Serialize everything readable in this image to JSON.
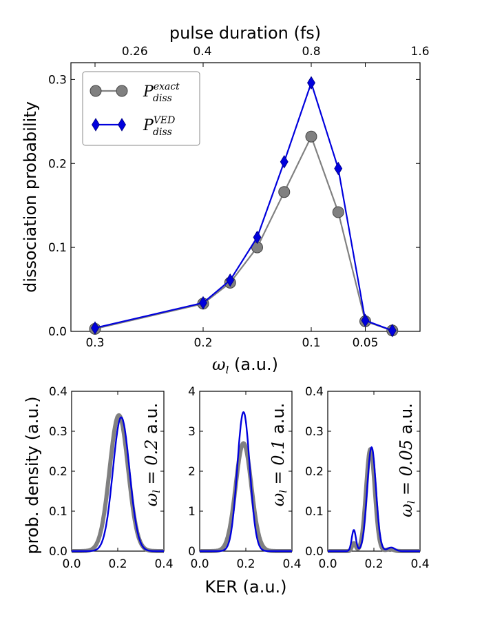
{
  "chart_data": [
    {
      "id": "main",
      "type": "line",
      "ylabel": "dissociation probability",
      "xlabel_symbol": "ω",
      "xlabel_sub": "l",
      "xlabel_unit": " (a.u.)",
      "top_xlabel": "pulse duration (fs)",
      "x_ticks": [
        {
          "value": 0.3,
          "label": "0.3"
        },
        {
          "value": 0.2,
          "label": "0.2"
        },
        {
          "value": 0.1,
          "label": "0.1"
        },
        {
          "value": 0.05,
          "label": "0.05"
        }
      ],
      "top_ticks": [
        {
          "value": 0.26,
          "label": "0.26"
        },
        {
          "value": 0.4,
          "label": "0.4"
        },
        {
          "value": 0.8,
          "label": "0.8"
        },
        {
          "value": 1.6,
          "label": "1.6"
        }
      ],
      "y_ticks": [
        {
          "value": 0,
          "label": "0.0"
        },
        {
          "value": 0.1,
          "label": "0.1"
        },
        {
          "value": 0.2,
          "label": "0.2"
        },
        {
          "value": 0.3,
          "label": "0.3"
        }
      ],
      "ylim": [
        0,
        0.32
      ],
      "series": [
        {
          "name": "exact",
          "legend_main": "P",
          "legend_sup": "exact",
          "legend_sub": "diss",
          "color": "#808080",
          "marker": "circle",
          "x": [
            0.3,
            0.2,
            0.175,
            0.15,
            0.125,
            0.1,
            0.075,
            0.05,
            0.025
          ],
          "y": [
            0.003,
            0.033,
            0.058,
            0.1,
            0.166,
            0.232,
            0.142,
            0.012,
            0.001
          ]
        },
        {
          "name": "VED",
          "legend_main": "P",
          "legend_sup": "VED",
          "legend_sub": "diss",
          "color": "#0000dd",
          "marker": "thin_diamond",
          "x": [
            0.3,
            0.2,
            0.175,
            0.15,
            0.125,
            0.1,
            0.075,
            0.05,
            0.025
          ],
          "y": [
            0.004,
            0.034,
            0.061,
            0.112,
            0.202,
            0.296,
            0.194,
            0.013,
            0.001
          ]
        }
      ]
    },
    {
      "id": "kerA",
      "type": "line",
      "ylabel": "prob. density (a.u.)",
      "annotation_sym": "ω",
      "annotation_sub": "l",
      "annotation_rest": " = 0.2",
      "annotation_unit": " a.u.",
      "xlim": [
        0,
        0.4
      ],
      "ylim": [
        0,
        0.4
      ],
      "x_ticks": [
        "0.0",
        "0.2",
        "0.4"
      ],
      "y_ticks": [
        "0.0",
        "0.1",
        "0.2",
        "0.3",
        "0.4"
      ],
      "series": [
        {
          "name": "exact",
          "color": "#808080",
          "peaks": [
            {
              "center": 0.205,
              "height": 0.34,
              "width": 0.04
            }
          ]
        },
        {
          "name": "VED",
          "color": "#0000dd",
          "peaks": [
            {
              "center": 0.215,
              "height": 0.335,
              "width": 0.036
            }
          ]
        }
      ]
    },
    {
      "id": "kerB",
      "type": "line",
      "xlabel": "KER (a.u.)",
      "annotation_sym": "ω",
      "annotation_sub": "l",
      "annotation_rest": " = 0.1",
      "annotation_unit": " a.u.",
      "xlim": [
        0,
        0.4
      ],
      "ylim": [
        0,
        4
      ],
      "x_ticks": [
        "0.0",
        "0.2",
        "0.4"
      ],
      "y_ticks": [
        "0",
        "1",
        "2",
        "3",
        "4"
      ],
      "series": [
        {
          "name": "exact",
          "color": "#808080",
          "peaks": [
            {
              "center": 0.19,
              "height": 2.7,
              "width": 0.034
            }
          ]
        },
        {
          "name": "VED",
          "color": "#0000dd",
          "peaks": [
            {
              "center": 0.19,
              "height": 3.48,
              "width": 0.027
            }
          ]
        }
      ]
    },
    {
      "id": "kerC",
      "type": "line",
      "annotation_sym": "ω",
      "annotation_sub": "l",
      "annotation_rest": " = 0.05",
      "annotation_unit": " a.u.",
      "xlim": [
        0,
        0.4
      ],
      "ylim": [
        0,
        0.4
      ],
      "x_ticks": [
        "0.0",
        "0.2",
        "0.4"
      ],
      "y_ticks": [
        "0.0",
        "0.1",
        "0.2",
        "0.3",
        "0.4"
      ],
      "series": [
        {
          "name": "exact",
          "color": "#808080",
          "peaks": [
            {
              "center": 0.113,
              "height": 0.02,
              "width": 0.008
            },
            {
              "center": 0.185,
              "height": 0.255,
              "width": 0.019
            },
            {
              "center": 0.27,
              "height": 0.005,
              "width": 0.015
            }
          ]
        },
        {
          "name": "VED",
          "color": "#0000dd",
          "peaks": [
            {
              "center": 0.113,
              "height": 0.053,
              "width": 0.009
            },
            {
              "center": 0.19,
              "height": 0.26,
              "width": 0.019
            },
            {
              "center": 0.275,
              "height": 0.009,
              "width": 0.016
            }
          ]
        }
      ]
    }
  ]
}
